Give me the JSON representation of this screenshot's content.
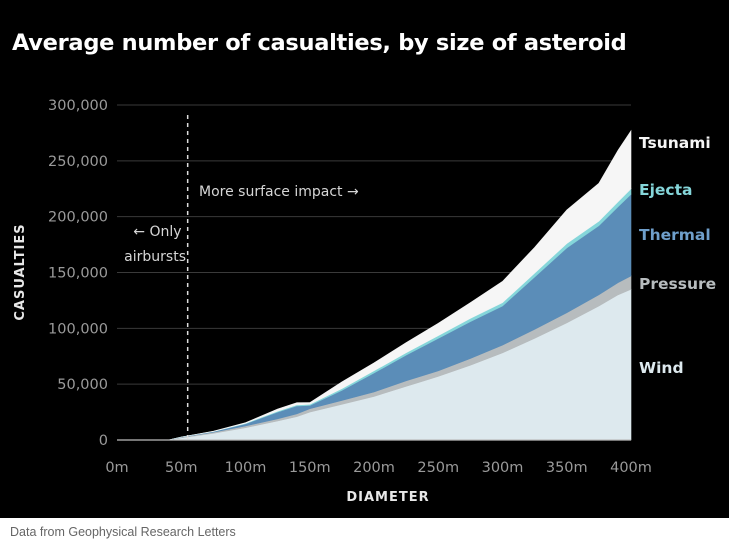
{
  "chart_data": {
    "type": "area",
    "stacked": true,
    "title": "Average number of casualties, by size of asteroid",
    "xlabel": "DIAMETER",
    "ylabel": "CASUALTIES",
    "xlim": [
      0,
      400
    ],
    "ylim": [
      0,
      300000
    ],
    "x_ticks": [
      "0m",
      "50m",
      "100m",
      "150m",
      "200m",
      "250m",
      "300m",
      "350m",
      "400m"
    ],
    "y_ticks": [
      "0",
      "50,000",
      "100,000",
      "150,000",
      "200,000",
      "250,000",
      "300,000"
    ],
    "grid": true,
    "legend_position": "right",
    "x": [
      40,
      50,
      75,
      100,
      125,
      140,
      150,
      175,
      200,
      225,
      250,
      275,
      300,
      325,
      350,
      375,
      390,
      400
    ],
    "series": [
      {
        "name": "Wind",
        "color": "#dde9ee",
        "values": [
          0,
          2000,
          6000,
          11000,
          17000,
          21000,
          25000,
          32000,
          39000,
          48000,
          57000,
          67000,
          78000,
          91000,
          105000,
          120000,
          130000,
          135000
        ]
      },
      {
        "name": "Pressure",
        "color": "#b7bcbe",
        "values": [
          0,
          500,
          1000,
          1500,
          2000,
          2500,
          3000,
          3500,
          4000,
          5000,
          5000,
          6000,
          7000,
          8000,
          9000,
          10000,
          11000,
          12000
        ]
      },
      {
        "name": "Thermal",
        "color": "#5b8db8",
        "values": [
          0,
          200,
          500,
          2000,
          6000,
          7000,
          3000,
          9000,
          17000,
          23000,
          29000,
          33000,
          35000,
          47000,
          58000,
          62000,
          68000,
          73000
        ]
      },
      {
        "name": "Ejecta",
        "color": "#85d6da",
        "values": [
          0,
          0,
          200,
          500,
          800,
          900,
          1000,
          1500,
          2000,
          2200,
          2500,
          3000,
          3000,
          3500,
          4000,
          4000,
          4500,
          5000
        ]
      },
      {
        "name": "Tsunami",
        "color": "#f6f6f6",
        "values": [
          0,
          0,
          200,
          500,
          2000,
          2000,
          1500,
          6000,
          7000,
          9000,
          11000,
          14000,
          19000,
          23000,
          30000,
          34000,
          46000,
          52000
        ]
      }
    ],
    "annotations": [
      {
        "text_lines": [
          "← Only",
          "airbursts"
        ],
        "x": 55
      },
      {
        "text": "More surface impact →"
      }
    ],
    "source": "Data from Geophysical Research Letters"
  }
}
